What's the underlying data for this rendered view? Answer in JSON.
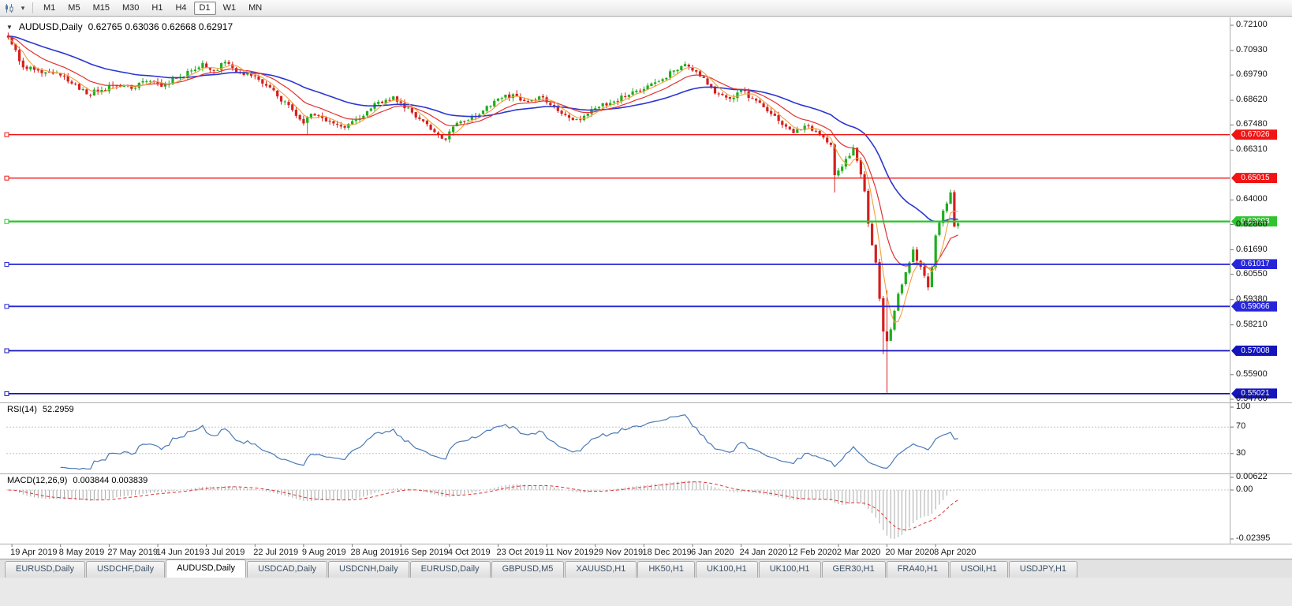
{
  "toolbar": {
    "timeframes": [
      "M1",
      "M5",
      "M15",
      "M30",
      "H1",
      "H4",
      "D1",
      "W1",
      "MN"
    ],
    "active_timeframe": "D1"
  },
  "chart": {
    "symbol_title": "AUDUSD,Daily",
    "ohlc_text": "0.62765 0.63036 0.62668 0.62917",
    "price_axis_labels": [
      "0.72100",
      "0.70930",
      "0.69790",
      "0.68620",
      "0.67480",
      "0.66310",
      "0.64000",
      "0.62860",
      "0.61690",
      "0.60550",
      "0.59380",
      "0.58210",
      "0.55900",
      "0.54760"
    ],
    "date_labels": [
      "19 Apr 2019",
      "8 May 2019",
      "27 May 2019",
      "14 Jun 2019",
      "3 Jul 2019",
      "22 Jul 2019",
      "9 Aug 2019",
      "28 Aug 2019",
      "16 Sep 2019",
      "4 Oct 2019",
      "23 Oct 2019",
      "11 Nov 2019",
      "29 Nov 2019",
      "18 Dec 2019",
      "6 Jan 2020",
      "24 Jan 2020",
      "12 Feb 2020",
      "2 Mar 2020",
      "20 Mar 2020",
      "8 Apr 2020"
    ]
  },
  "rsi_panel": {
    "name": "RSI(14)",
    "value": "52.2959",
    "axis_labels": [
      "100",
      "70",
      "30"
    ]
  },
  "macd_panel": {
    "name": "MACD(12,26,9)",
    "values": "0.003844 0.003839",
    "axis_labels": [
      "0.00622",
      "0.00",
      "-0.02395"
    ]
  },
  "tabs": {
    "items": [
      "EURUSD,Daily",
      "USDCHF,Daily",
      "AUDUSD,Daily",
      "USDCAD,Daily",
      "USDCNH,Daily",
      "EURUSD,Daily",
      "GBPUSD,M5",
      "XAUUSD,H1",
      "HK50,H1",
      "UK100,H1",
      "UK100,H1",
      "GER30,H1",
      "FRA40,H1",
      "USOil,H1",
      "USDJPY,H1"
    ],
    "active_index": 2
  },
  "colors": {
    "up_candle": "#1fae1f",
    "down_candle": "#d51f1f",
    "ma_fast_orange": "#f2a03c",
    "ma_mid_red": "#e03232",
    "ma_slow_blue": "#2b36cf",
    "rsi_line": "#4a7ab5",
    "rsi_levels": "#c3c3c3",
    "macd_hist": "#a8a8a8",
    "macd_signal": "#e03232",
    "separator": "#adadad"
  },
  "chart_data": {
    "type": "candlestick",
    "symbol": "AUDUSD",
    "timeframe": "Daily",
    "visible_date_range": [
      "19 Apr 2019",
      "16 Apr 2020"
    ],
    "price_axis_range": [
      0.5476,
      0.721
    ],
    "last_ohlc": {
      "open": 0.62765,
      "high": 0.63036,
      "low": 0.62668,
      "close": 0.62917
    },
    "num_candles": 255,
    "first_open": 0.7162,
    "close_path_anchors": [
      [
        0,
        0.7153
      ],
      [
        2,
        0.7095
      ],
      [
        4,
        0.7015
      ],
      [
        8,
        0.7
      ],
      [
        13,
        0.699
      ],
      [
        17,
        0.694
      ],
      [
        21,
        0.689
      ],
      [
        25,
        0.691
      ],
      [
        29,
        0.693
      ],
      [
        33,
        0.6915
      ],
      [
        37,
        0.695
      ],
      [
        41,
        0.6925
      ],
      [
        45,
        0.6965
      ],
      [
        49,
        0.7
      ],
      [
        52,
        0.7035
      ],
      [
        55,
        0.7
      ],
      [
        58,
        0.704
      ],
      [
        62,
        0.699
      ],
      [
        66,
        0.6975
      ],
      [
        69,
        0.693
      ],
      [
        72,
        0.688
      ],
      [
        75,
        0.684
      ],
      [
        77,
        0.679
      ],
      [
        79,
        0.6755
      ],
      [
        81,
        0.68
      ],
      [
        84,
        0.678
      ],
      [
        87,
        0.6755
      ],
      [
        90,
        0.6735
      ],
      [
        92,
        0.6765
      ],
      [
        95,
        0.679
      ],
      [
        99,
        0.6855
      ],
      [
        103,
        0.688
      ],
      [
        105,
        0.685
      ],
      [
        108,
        0.6805
      ],
      [
        111,
        0.6765
      ],
      [
        114,
        0.6715
      ],
      [
        117,
        0.668
      ],
      [
        119,
        0.674
      ],
      [
        123,
        0.677
      ],
      [
        127,
        0.6815
      ],
      [
        131,
        0.687
      ],
      [
        135,
        0.689
      ],
      [
        139,
        0.6855
      ],
      [
        142,
        0.688
      ],
      [
        145,
        0.684
      ],
      [
        148,
        0.68
      ],
      [
        151,
        0.677
      ],
      [
        154,
        0.679
      ],
      [
        157,
        0.6825
      ],
      [
        161,
        0.685
      ],
      [
        165,
        0.688
      ],
      [
        169,
        0.6905
      ],
      [
        172,
        0.694
      ],
      [
        175,
        0.696
      ],
      [
        178,
        0.7
      ],
      [
        181,
        0.703
      ],
      [
        184,
        0.6995
      ],
      [
        187,
        0.6935
      ],
      [
        190,
        0.689
      ],
      [
        193,
        0.687
      ],
      [
        196,
        0.691
      ],
      [
        199,
        0.687
      ],
      [
        202,
        0.683
      ],
      [
        205,
        0.679
      ],
      [
        208,
        0.674
      ],
      [
        210,
        0.671
      ],
      [
        212,
        0.6725
      ],
      [
        214,
        0.6745
      ],
      [
        216,
        0.672
      ],
      [
        218,
        0.669
      ],
      [
        220,
        0.6655
      ],
      [
        221,
        0.6515
      ],
      [
        222,
        0.6536
      ],
      [
        224,
        0.659
      ],
      [
        226,
        0.664
      ],
      [
        227,
        0.6582
      ],
      [
        229,
        0.644
      ],
      [
        230,
        0.629
      ],
      [
        232,
        0.611
      ],
      [
        234,
        0.579
      ],
      [
        235,
        0.5745
      ],
      [
        236,
        0.58
      ],
      [
        238,
        0.5965
      ],
      [
        240,
        0.6065
      ],
      [
        242,
        0.617
      ],
      [
        244,
        0.609
      ],
      [
        246,
        0.5995
      ],
      [
        247,
        0.6085
      ],
      [
        248,
        0.6235
      ],
      [
        250,
        0.635
      ],
      [
        252,
        0.6435
      ],
      [
        253,
        0.6277
      ],
      [
        254,
        0.62917
      ]
    ],
    "wick_overrides": [
      {
        "index": 0,
        "high": 0.7176
      },
      {
        "index": 80,
        "low": 0.67
      },
      {
        "index": 117,
        "low": 0.6671
      },
      {
        "index": 221,
        "low": 0.6435
      },
      {
        "index": 234,
        "low": 0.5685
      },
      {
        "index": 235,
        "low": 0.5506,
        "high": 0.598
      },
      {
        "index": 252,
        "high": 0.6448
      },
      {
        "index": 254,
        "high": 0.63036,
        "low": 0.62668
      }
    ],
    "moving_averages": [
      {
        "type": "ema",
        "period": 40,
        "color": "#2b36cf",
        "width": 1.6,
        "init": 0.716
      },
      {
        "type": "ema",
        "period": 14,
        "color": "#e03232",
        "width": 1.2,
        "init": 0.7158
      },
      {
        "type": "sma",
        "period": 5,
        "color": "#f2a03c",
        "width": 1.1
      }
    ],
    "horizontal_levels": [
      {
        "label": "0.67026",
        "price": 0.67026,
        "color": "#f01414",
        "width": 1.4
      },
      {
        "label": "0.65015",
        "price": 0.65015,
        "color": "#f01414",
        "width": 1.4
      },
      {
        "label": "0.63003",
        "price": 0.63003,
        "color": "#2fc42f",
        "width": 2.4
      },
      {
        "label": "0.61017",
        "price": 0.61017,
        "color": "#2626d8",
        "width": 1.8
      },
      {
        "label": "0.59066",
        "price": 0.59066,
        "color": "#2626d8",
        "width": 1.8
      },
      {
        "label": "0.57008",
        "price": 0.57008,
        "color": "#1414bb",
        "width": 1.8
      },
      {
        "label": "0.55021",
        "price": 0.55021,
        "color": "#1414bb",
        "width": 1.8
      }
    ],
    "indicators": {
      "rsi": {
        "period": 14,
        "current": 52.2959,
        "overbought": 70,
        "oversold": 30,
        "scale": [
          0,
          100
        ]
      },
      "macd": {
        "fast": 12,
        "slow": 26,
        "signal": 9,
        "current_macd": 0.003844,
        "current_signal": 0.003839,
        "axis_max": 0.00622,
        "axis_min": -0.02395
      }
    }
  }
}
